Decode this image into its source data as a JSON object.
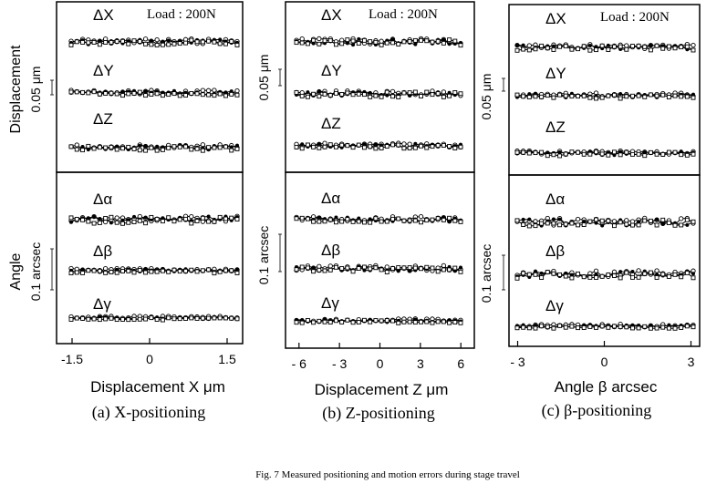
{
  "figure": {
    "caption": "Fig. 7   Measured  positioning and motion errors during stage travel"
  },
  "chart_data": [
    {
      "type": "scatter",
      "subtitle": "(a) X-positioning",
      "xlabel": "Displacement  X  μm",
      "xlim": [
        -1.8,
        1.8
      ],
      "xticks": [
        -1.5,
        0,
        1.5
      ],
      "xtick_labels": [
        "-1.5",
        "0",
        "1.5"
      ],
      "load_label": "Load : 200N",
      "displacement_axis_label": "Displacement",
      "displacement_scale_label": "0.05  μm",
      "angle_axis_label": "Angle",
      "angle_scale_label": "0.1  arcsec",
      "traces": [
        {
          "label": "ΔX",
          "amplitude": 0.9
        },
        {
          "label": "ΔY",
          "amplitude": 0.7
        },
        {
          "label": "ΔZ",
          "amplitude": 0.8
        },
        {
          "label": "Δα",
          "amplitude": 1.1
        },
        {
          "label": "Δβ",
          "amplitude": 0.6
        },
        {
          "label": "Δγ",
          "amplitude": 0.4
        }
      ]
    },
    {
      "type": "scatter",
      "subtitle": "(b) Z-positioning",
      "xlabel": "Displacement  Z  μm",
      "xlim": [
        -7,
        7
      ],
      "xticks": [
        -6,
        -3,
        0,
        3,
        6
      ],
      "xtick_labels": [
        "- 6",
        "- 3",
        "0",
        "3",
        "6"
      ],
      "load_label": "Load : 200N",
      "displacement_scale_label": "0.05  μm",
      "angle_scale_label": "0.1  arcsec",
      "traces": [
        {
          "label": "ΔX",
          "amplitude": 1.0
        },
        {
          "label": "ΔY",
          "amplitude": 0.9
        },
        {
          "label": "ΔZ",
          "amplitude": 0.7
        },
        {
          "label": "Δα",
          "amplitude": 0.8
        },
        {
          "label": "Δβ",
          "amplitude": 0.9
        },
        {
          "label": "Δγ",
          "amplitude": 0.5
        }
      ]
    },
    {
      "type": "scatter",
      "subtitle": "(c) β-positioning",
      "xlabel": "Angle  β  arcsec",
      "xlim": [
        -3.3,
        3.3
      ],
      "xticks": [
        -3,
        0,
        3
      ],
      "xtick_labels": [
        "- 3",
        "0",
        "3"
      ],
      "load_label": "Load : 200N",
      "displacement_scale_label": "0.05  μm",
      "angle_scale_label": "0.1  arcsec",
      "traces": [
        {
          "label": "ΔX",
          "amplitude": 0.8
        },
        {
          "label": "ΔY",
          "amplitude": 0.7
        },
        {
          "label": "ΔZ",
          "amplitude": 0.7
        },
        {
          "label": "Δα",
          "amplitude": 1.2
        },
        {
          "label": "Δβ",
          "amplitude": 1.1
        },
        {
          "label": "Δγ",
          "amplitude": 0.5
        }
      ]
    }
  ]
}
